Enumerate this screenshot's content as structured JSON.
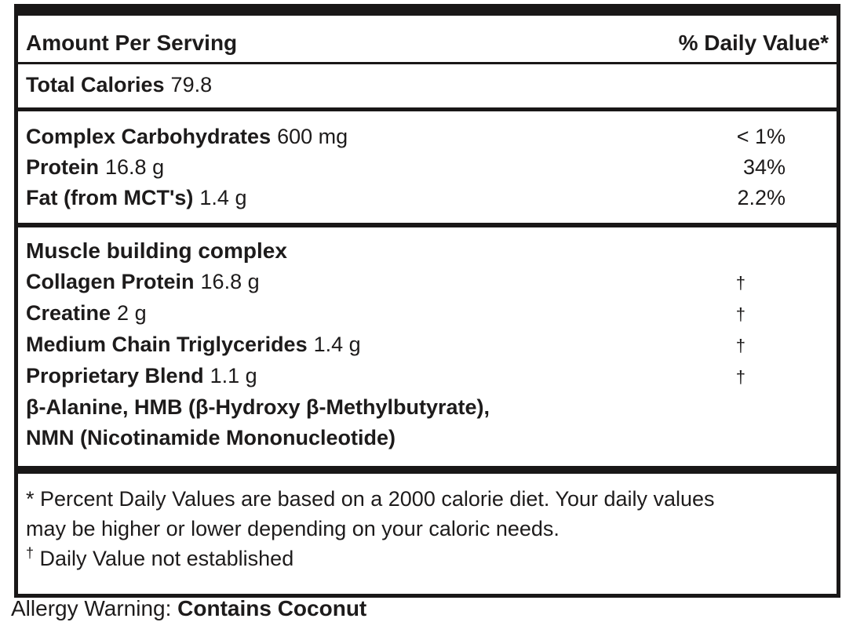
{
  "colors": {
    "text": "#1d1b1b",
    "border": "#191717",
    "background": "#ffffff"
  },
  "label": {
    "header": {
      "left": "Amount Per Serving",
      "right": "% Daily Value*"
    },
    "calories": {
      "name": "Total Calories",
      "amount": "79.8"
    },
    "nutrients": [
      {
        "name": "Complex Carbohydrates",
        "amount": "600 mg",
        "dv": "< 1%"
      },
      {
        "name": "Protein",
        "amount": "16.8 g",
        "dv": "34%"
      },
      {
        "name": "Fat (from MCT's)",
        "amount": "1.4 g",
        "dv": "2.2%"
      }
    ],
    "complex_section": {
      "title": "Muscle building complex",
      "rows": [
        {
          "name": "Collagen Protein",
          "amount": "16.8 g",
          "dv": "†"
        },
        {
          "name": "Creatine",
          "amount": "2 g",
          "dv": "†"
        },
        {
          "name": "Medium Chain Triglycerides",
          "amount": "1.4 g",
          "dv": "†"
        },
        {
          "name": "Proprietary Blend",
          "amount": "1.1 g",
          "dv": "†"
        }
      ],
      "blend_lines": {
        "line1": "β-Alanine, HMB (β-Hydroxy β-Methylbutyrate),",
        "line2": "NMN (Nicotinamide Mononucleotide)"
      }
    },
    "footnote": {
      "line1": "* Percent Daily Values are based on a 2000 calorie diet. Your daily values",
      "line2": "may be higher or lower depending on your caloric needs.",
      "line3_marker": "†",
      "line3_text": " Daily Value not established"
    },
    "allergy": {
      "prefix": "Allergy Warning: ",
      "bold": "Contains Coconut"
    }
  }
}
